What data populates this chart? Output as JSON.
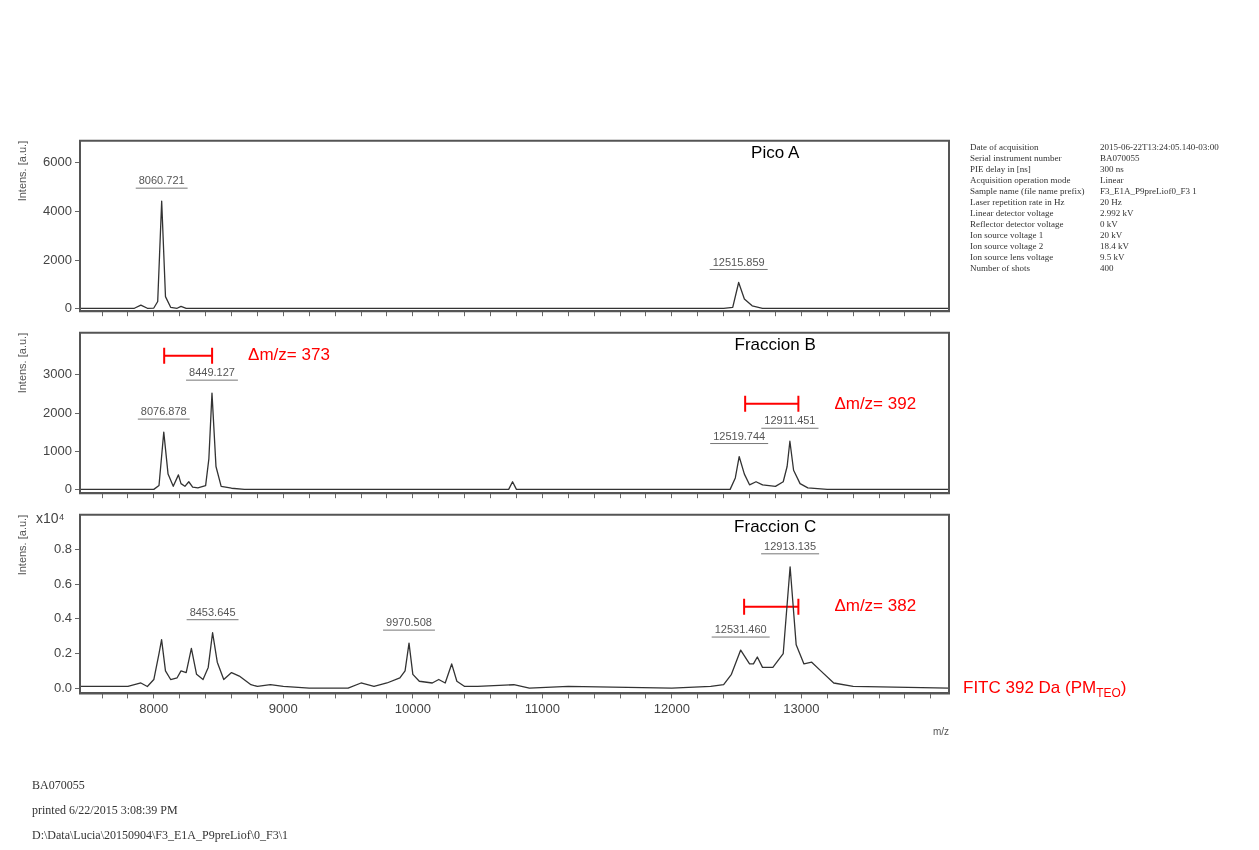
{
  "chart_data": [
    {
      "type": "line",
      "title": "Pico A",
      "ylabel": "Intens. [a.u.]",
      "xlim": [
        7430,
        14140
      ],
      "ylim": [
        -100,
        6900
      ],
      "xticks": [
        {
          "value": 7600,
          "label": null
        },
        {
          "value": 7800,
          "label": null
        },
        {
          "value": 8000,
          "label": null
        },
        {
          "value": 8200,
          "label": null
        },
        {
          "value": 8400,
          "label": null
        },
        {
          "value": 8600,
          "label": null
        },
        {
          "value": 8800,
          "label": null
        },
        {
          "value": 9000,
          "label": null
        },
        {
          "value": 9200,
          "label": null
        },
        {
          "value": 9400,
          "label": null
        },
        {
          "value": 9600,
          "label": null
        },
        {
          "value": 9800,
          "label": null
        },
        {
          "value": 10000,
          "label": null
        },
        {
          "value": 10200,
          "label": null
        },
        {
          "value": 10400,
          "label": null
        },
        {
          "value": 10600,
          "label": null
        },
        {
          "value": 10800,
          "label": null
        },
        {
          "value": 11000,
          "label": null
        },
        {
          "value": 11200,
          "label": null
        },
        {
          "value": 11400,
          "label": null
        },
        {
          "value": 11600,
          "label": null
        },
        {
          "value": 11800,
          "label": null
        },
        {
          "value": 12000,
          "label": null
        },
        {
          "value": 12200,
          "label": null
        },
        {
          "value": 12400,
          "label": null
        },
        {
          "value": 12600,
          "label": null
        },
        {
          "value": 12800,
          "label": null
        },
        {
          "value": 13000,
          "label": null
        },
        {
          "value": 13200,
          "label": null
        },
        {
          "value": 13400,
          "label": null
        },
        {
          "value": 13600,
          "label": null
        },
        {
          "value": 13800,
          "label": null
        },
        {
          "value": 14000,
          "label": null
        }
      ],
      "yticks": [
        0,
        2000,
        4000,
        6000
      ],
      "tick_labels": "y",
      "grid": false,
      "marker": "none",
      "line_style": "solid",
      "series": [
        {
          "color": "#333333",
          "x": [
            7430,
            7850,
            7900,
            7950,
            8000,
            8030,
            8060.721,
            8090,
            8130,
            8180,
            8210,
            8250,
            8400,
            9000,
            10000,
            11000,
            12000,
            12400,
            12470,
            12515.859,
            12560,
            12620,
            12700,
            14140
          ],
          "values": [
            20,
            20,
            150,
            20,
            30,
            300,
            4420,
            500,
            60,
            20,
            100,
            20,
            20,
            20,
            20,
            20,
            20,
            20,
            60,
            1080,
            400,
            120,
            20,
            20
          ]
        }
      ],
      "annotations": [
        {
          "text": "8060.721",
          "x": 8060.721,
          "y": 4420
        },
        {
          "text": "12515.859",
          "x": 12515.859,
          "y": 1080
        }
      ]
    },
    {
      "type": "line",
      "title": "Fraccion B",
      "ylabel": "Intens. [a.u.]",
      "xlim": [
        7430,
        14140
      ],
      "ylim": [
        -100,
        4100
      ],
      "xticks": [
        {
          "value": 7600,
          "label": null
        },
        {
          "value": 7800,
          "label": null
        },
        {
          "value": 8000,
          "label": null
        },
        {
          "value": 8200,
          "label": null
        },
        {
          "value": 8400,
          "label": null
        },
        {
          "value": 8600,
          "label": null
        },
        {
          "value": 8800,
          "label": null
        },
        {
          "value": 9000,
          "label": null
        },
        {
          "value": 9200,
          "label": null
        },
        {
          "value": 9400,
          "label": null
        },
        {
          "value": 9600,
          "label": null
        },
        {
          "value": 9800,
          "label": null
        },
        {
          "value": 10000,
          "label": null
        },
        {
          "value": 10200,
          "label": null
        },
        {
          "value": 10400,
          "label": null
        },
        {
          "value": 10600,
          "label": null
        },
        {
          "value": 10800,
          "label": null
        },
        {
          "value": 11000,
          "label": null
        },
        {
          "value": 11200,
          "label": null
        },
        {
          "value": 11400,
          "label": null
        },
        {
          "value": 11600,
          "label": null
        },
        {
          "value": 11800,
          "label": null
        },
        {
          "value": 12000,
          "label": null
        },
        {
          "value": 12200,
          "label": null
        },
        {
          "value": 12400,
          "label": null
        },
        {
          "value": 12600,
          "label": null
        },
        {
          "value": 12800,
          "label": null
        },
        {
          "value": 13000,
          "label": null
        },
        {
          "value": 13200,
          "label": null
        },
        {
          "value": 13400,
          "label": null
        },
        {
          "value": 13600,
          "label": null
        },
        {
          "value": 13800,
          "label": null
        },
        {
          "value": 14000,
          "label": null
        }
      ],
      "yticks": [
        0,
        1000,
        2000,
        3000
      ],
      "tick_labels": "y",
      "grid": false,
      "legend": "right",
      "marker": "none",
      "line_style": "solid",
      "series": [
        {
          "color": "#333333",
          "x": [
            7430,
            8000,
            8040,
            8076.878,
            8110,
            8150,
            8190,
            8210,
            8240,
            8270,
            8300,
            8340,
            8400,
            8425,
            8449.127,
            8480,
            8520,
            8600,
            8700,
            10740,
            10770,
            10800,
            12300,
            12450,
            12490,
            12519.744,
            12560,
            12600,
            12650,
            12700,
            12800,
            12860,
            12890,
            12911.451,
            12940,
            12990,
            13050,
            13200,
            14140
          ],
          "values": [
            0,
            0,
            100,
            1500,
            400,
            80,
            380,
            150,
            80,
            200,
            60,
            40,
            100,
            800,
            2520,
            600,
            80,
            30,
            0,
            0,
            200,
            0,
            0,
            0,
            300,
            860,
            400,
            120,
            200,
            120,
            80,
            200,
            600,
            1260,
            500,
            150,
            40,
            0,
            0
          ]
        },
        {
          "name": "Δm/z= 373",
          "color": "#ff0000",
          "x": [
            8080,
            8450
          ],
          "values": [
            3500,
            3500
          ]
        },
        {
          "name": "Δm/z= 392",
          "color": "#ff0000",
          "x": [
            12566,
            12977
          ],
          "values": [
            2240,
            2240
          ]
        }
      ],
      "annotations": [
        {
          "text": "8449.127",
          "x": 8449.127,
          "y": 2520
        },
        {
          "text": "8076.878",
          "x": 8076.878,
          "y": 1500
        },
        {
          "text": "12519.744",
          "x": 12519.744,
          "y": 860
        },
        {
          "text": "12911.451",
          "x": 12911.451,
          "y": 1260
        }
      ]
    },
    {
      "type": "line",
      "title": "Fraccion C",
      "xlabel": "m/z",
      "ylabel": "Intens. [a.u.]",
      "xlim": [
        7430,
        14140
      ],
      "ylim": [
        -0.03,
        1.0
      ],
      "xticks": [
        {
          "value": 7600,
          "label": null
        },
        {
          "value": 7800,
          "label": null
        },
        8000,
        {
          "value": 8200,
          "label": null
        },
        {
          "value": 8400,
          "label": null
        },
        {
          "value": 8600,
          "label": null
        },
        {
          "value": 8800,
          "label": null
        },
        9000,
        {
          "value": 9200,
          "label": null
        },
        {
          "value": 9400,
          "label": null
        },
        {
          "value": 9600,
          "label": null
        },
        {
          "value": 9800,
          "label": null
        },
        10000,
        {
          "value": 10200,
          "label": null
        },
        {
          "value": 10400,
          "label": null
        },
        {
          "value": 10600,
          "label": null
        },
        {
          "value": 10800,
          "label": null
        },
        11000,
        {
          "value": 11200,
          "label": null
        },
        {
          "value": 11400,
          "label": null
        },
        {
          "value": 11600,
          "label": null
        },
        {
          "value": 11800,
          "label": null
        },
        12000,
        {
          "value": 12200,
          "label": null
        },
        {
          "value": 12400,
          "label": null
        },
        {
          "value": 12600,
          "label": null
        },
        {
          "value": 12800,
          "label": null
        },
        13000,
        {
          "value": 13200,
          "label": null
        },
        {
          "value": 13400,
          "label": null
        },
        {
          "value": 13600,
          "label": null
        },
        {
          "value": 13800,
          "label": null
        },
        {
          "value": 14000,
          "label": null
        }
      ],
      "yticks": [
        {
          "value": 0,
          "label": "0.0"
        },
        0.2,
        0.4,
        0.6,
        0.8
      ],
      "grid": false,
      "legend": "right",
      "marker": "none",
      "line_style": "solid",
      "series": [
        {
          "color": "#333333",
          "x": [
            7430,
            7800,
            7900,
            7950,
            8000,
            8040,
            8060,
            8090,
            8130,
            8180,
            8210,
            8250,
            8290,
            8330,
            8380,
            8420,
            8453.645,
            8490,
            8540,
            8600,
            8660,
            8750,
            8800,
            8900,
            9000,
            9200,
            9500,
            9600,
            9700,
            9800,
            9900,
            9940,
            9970.508,
            10000,
            10050,
            10150,
            10200,
            10250,
            10300,
            10340,
            10400,
            10500,
            10780,
            10900,
            11200,
            12000,
            12300,
            12400,
            12460,
            12531.46,
            12600,
            12630,
            12660,
            12700,
            12780,
            12860,
            12913.135,
            12960,
            13020,
            13080,
            13150,
            13250,
            13400,
            14140
          ],
          "values": [
            0.01,
            0.01,
            0.03,
            0.01,
            0.05,
            0.2,
            0.28,
            0.1,
            0.05,
            0.06,
            0.1,
            0.09,
            0.23,
            0.08,
            0.05,
            0.12,
            0.32,
            0.15,
            0.05,
            0.09,
            0.07,
            0.02,
            0.01,
            0.02,
            0.01,
            0,
            0,
            0.03,
            0.01,
            0.03,
            0.06,
            0.1,
            0.26,
            0.08,
            0.04,
            0.03,
            0.05,
            0.03,
            0.14,
            0.04,
            0.01,
            0.01,
            0.02,
            0,
            0.01,
            0,
            0.01,
            0.02,
            0.08,
            0.22,
            0.14,
            0.14,
            0.18,
            0.12,
            0.12,
            0.2,
            0.7,
            0.25,
            0.14,
            0.15,
            0.1,
            0.03,
            0.01,
            0
          ]
        },
        {
          "name": "Δm/z= 382",
          "color": "#ff0000",
          "x": [
            12558,
            12977
          ],
          "values": [
            0.47,
            0.47
          ]
        }
      ],
      "annotations": [
        "x10⁴",
        {
          "text": "8453.645",
          "x": 8453.645,
          "y": 0.32
        },
        {
          "text": "9970.508",
          "x": 9970.508,
          "y": 0.26
        },
        {
          "text": "12531.460",
          "x": 12531.46,
          "y": 0.22
        },
        {
          "text": "12913.135",
          "x": 12913.135,
          "y": 0.7
        },
        "FITC 392 Da (PM$_{TEO}$)"
      ]
    },
    {
      "type": "other",
      "annotations": [
        "Date of acquisition",
        "2015-06-22T13:24:05.140-03:00",
        "Serial instrument number",
        "BA070055",
        "PIE delay in [ns]",
        "300 ns",
        "Acquisition operation mode",
        "Linear",
        "Sample name (file name prefix)",
        "F3_E1A_P9preLiof0_F3 1",
        "Laser repetition rate in Hz",
        "20 Hz",
        "Linear detector voltage",
        "2.992 kV",
        "Reflector detector voltage",
        "0 kV",
        "Ion source voltage 1",
        "20 kV",
        "Ion source voltage 2",
        "18.4 kV",
        "Ion source lens voltage",
        "9.5 kV",
        "Number of shots",
        "400"
      ]
    },
    {
      "type": "other",
      "annotations": [
        "BA070055",
        "printed   6/22/2015   3:08:39 PM",
        "D:\\Data\\Lucia\\20150904\\F3_E1A_P9preLiof\\0_F3\\1"
      ]
    }
  ]
}
